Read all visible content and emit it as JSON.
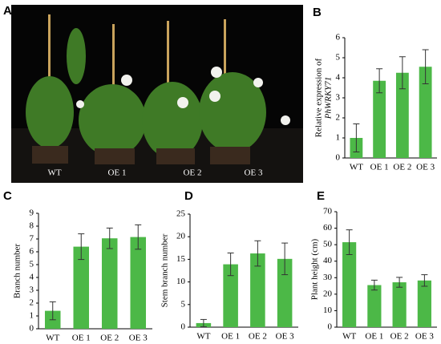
{
  "photo": {
    "panel": "A",
    "labels": [
      "WT",
      "OE 1",
      "OE 2",
      "OE 3"
    ]
  },
  "chart_data": [
    {
      "type": "bar",
      "panel": "B",
      "y_label": "Relative expression of",
      "y_label_gene": "PhWRKY71",
      "categories": [
        "WT",
        "OE 1",
        "OE 2",
        "OE 3"
      ],
      "values": [
        1.0,
        3.85,
        4.25,
        4.55
      ],
      "errors": [
        0.7,
        0.6,
        0.8,
        0.85
      ],
      "color": "#4cb847",
      "ylim": [
        0,
        6
      ],
      "yticks": [
        0,
        1,
        2,
        3,
        4,
        5,
        6
      ]
    },
    {
      "type": "bar",
      "panel": "C",
      "y_label": "Branch number",
      "categories": [
        "WT",
        "OE 1",
        "OE 2",
        "OE 3"
      ],
      "values": [
        1.4,
        6.4,
        7.05,
        7.15
      ],
      "errors": [
        0.7,
        1.0,
        0.8,
        0.95
      ],
      "color": "#4cb847",
      "ylim": [
        0,
        9
      ],
      "yticks": [
        0,
        1,
        2,
        3,
        4,
        5,
        6,
        7,
        8,
        9
      ]
    },
    {
      "type": "bar",
      "panel": "D",
      "y_label": "Stem branch number",
      "categories": [
        "WT",
        "OE 1",
        "OE 2",
        "OE 3"
      ],
      "values": [
        0.9,
        13.9,
        16.3,
        15.1
      ],
      "errors": [
        0.8,
        2.5,
        2.8,
        3.5
      ],
      "color": "#4cb847",
      "ylim": [
        0,
        25
      ],
      "yticks": [
        0,
        5,
        10,
        15,
        20,
        25
      ]
    },
    {
      "type": "bar",
      "panel": "E",
      "y_label": "Plant height (cm)",
      "categories": [
        "WT",
        "OE 1",
        "OE 2",
        "OE 3"
      ],
      "values": [
        51.5,
        25.5,
        27.2,
        28.3
      ],
      "errors": [
        7.5,
        3.0,
        3.0,
        3.5
      ],
      "color": "#4cb847",
      "ylim": [
        0,
        70
      ],
      "yticks": [
        0,
        10,
        20,
        30,
        40,
        50,
        60,
        70
      ]
    }
  ]
}
